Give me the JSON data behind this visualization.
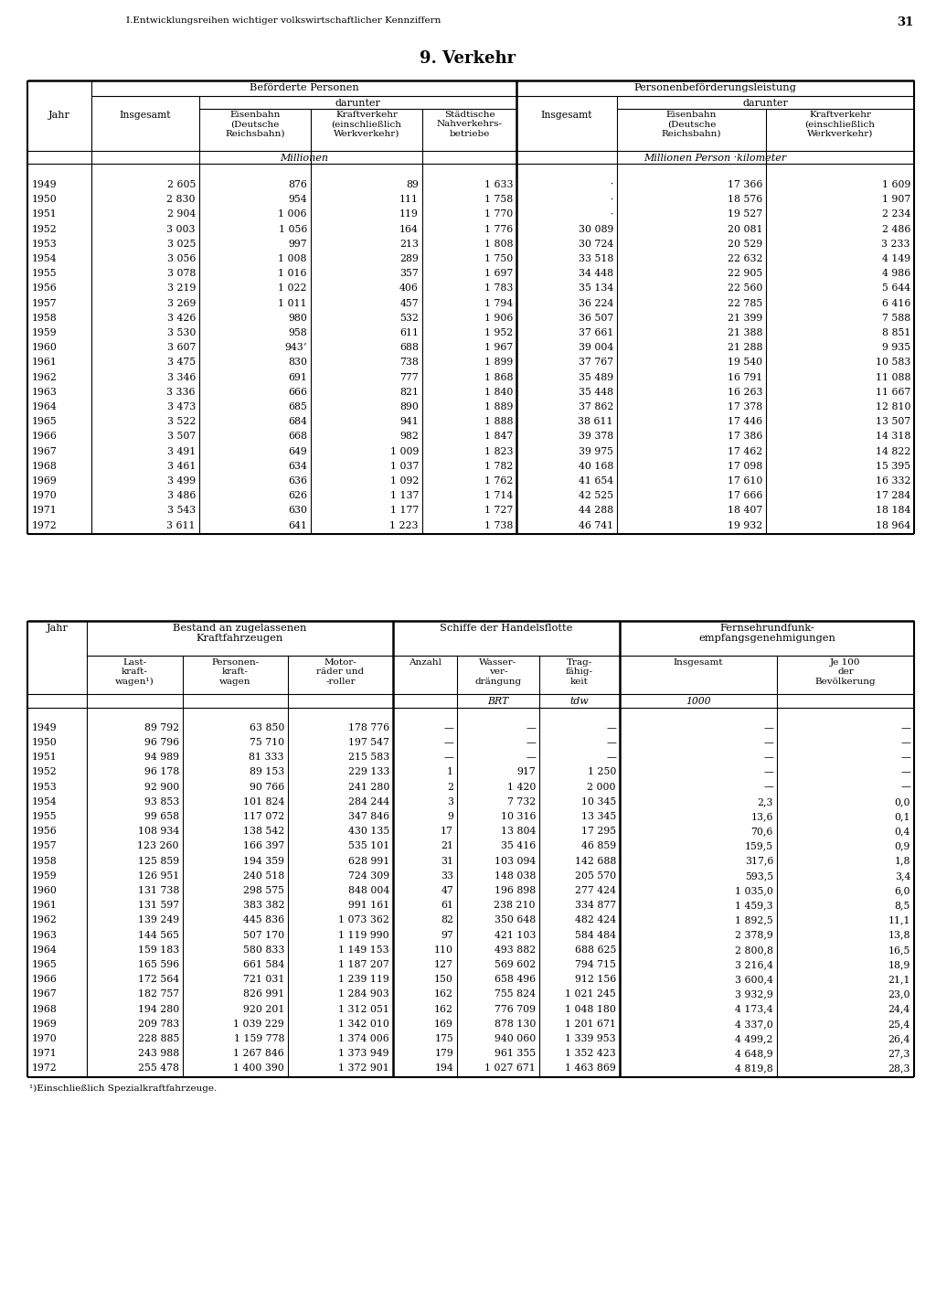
{
  "page_header": "I.Entwicklungsreihen wichtiger volkswirtschaftlicher Kennziffern",
  "page_number": "31",
  "section_title": "9. Verkehr",
  "table1": {
    "header1_left": "Beförderte Personen",
    "header1_right": "Personenbeförderungsleistung",
    "darunter1": "darunter",
    "darunter2": "darunter",
    "col_jahr": "Jahr",
    "col_ins1": "Insgesamt",
    "col_eisenbahn1": "Eisenbahn\n(Deutsche\nReichsbahn)",
    "col_kraft1": "Kraftverkehr\n(einschließlich\nWerkverkehr)",
    "col_stad": "Städtische\nNahverkehrs-\nbetriebe",
    "col_ins2": "Insgesamt",
    "col_eisenbahn2": "Eisenbahn\n(Deutsche\nReichsbahn)",
    "col_kraft2": "Kraftverkehr\n(einschließlich\nWerkverkehr)",
    "unit1": "Millionen",
    "unit2": "Millionen Person ·kilometer",
    "rows": [
      [
        "1949",
        "2 605",
        "876",
        "89",
        "1 633",
        "·",
        "17 366",
        "1 609"
      ],
      [
        "1950",
        "2 830",
        "954",
        "111",
        "1 758",
        "·",
        "18 576",
        "1 907"
      ],
      [
        "1951",
        "2 904",
        "1 006",
        "119",
        "1 770",
        "·",
        "19 527",
        "2 234"
      ],
      [
        "1952",
        "3 003",
        "1 056",
        "164",
        "1 776",
        "30 089",
        "20 081",
        "2 486"
      ],
      [
        "1953",
        "3 025",
        "997",
        "213",
        "1 808",
        "30 724",
        "20 529",
        "3 233"
      ],
      [
        "1954",
        "3 056",
        "1 008",
        "289",
        "1 750",
        "33 518",
        "22 632",
        "4 149"
      ],
      [
        "1955",
        "3 078",
        "1 016",
        "357",
        "1 697",
        "34 448",
        "22 905",
        "4 986"
      ],
      [
        "1956",
        "3 219",
        "1 022",
        "406",
        "1 783",
        "35 134",
        "22 560",
        "5 644"
      ],
      [
        "1957",
        "3 269",
        "1 011",
        "457",
        "1 794",
        "36 224",
        "22 785",
        "6 416"
      ],
      [
        "1958",
        "3 426",
        "980",
        "532",
        "1 906",
        "36 507",
        "21 399",
        "7 588"
      ],
      [
        "1959",
        "3 530",
        "958",
        "611",
        "1 952",
        "37 661",
        "21 388",
        "8 851"
      ],
      [
        "1960",
        "3 607",
        "943ʼ",
        "688",
        "1 967",
        "39 004",
        "21 288",
        "9 935"
      ],
      [
        "1961",
        "3 475",
        "830",
        "738",
        "1 899",
        "37 767",
        "19 540",
        "10 583"
      ],
      [
        "1962",
        "3 346",
        "691",
        "777",
        "1 868",
        "35 489",
        "16 791",
        "11 088"
      ],
      [
        "1963",
        "3 336",
        "666",
        "821",
        "1 840",
        "35 448",
        "16 263",
        "11 667"
      ],
      [
        "1964",
        "3 473",
        "685",
        "890",
        "1 889",
        "37 862",
        "17 378",
        "12 810"
      ],
      [
        "1965",
        "3 522",
        "684",
        "941",
        "1 888",
        "38 611",
        "17 446",
        "13 507"
      ],
      [
        "1966",
        "3 507",
        "668",
        "982",
        "1 847",
        "39 378",
        "17 386",
        "14 318"
      ],
      [
        "1967",
        "3 491",
        "649",
        "1 009",
        "1 823",
        "39 975",
        "17 462",
        "14 822"
      ],
      [
        "1968",
        "3 461",
        "634",
        "1 037",
        "1 782",
        "40 168",
        "17 098",
        "15 395"
      ],
      [
        "1969",
        "3 499",
        "636",
        "1 092",
        "1 762",
        "41 654",
        "17 610",
        "16 332"
      ],
      [
        "1970",
        "3 486",
        "626",
        "1 137",
        "1 714",
        "42 525",
        "17 666",
        "17 284"
      ],
      [
        "1971",
        "3 543",
        "630",
        "1 177",
        "1 727",
        "44 288",
        "18 407",
        "18 184"
      ],
      [
        "1972",
        "3 611",
        "641",
        "1 223",
        "1 738",
        "46 741",
        "19 932",
        "18 964"
      ]
    ]
  },
  "table2": {
    "header1_left": "Bestand an zugelassenen\nKraftfahrzeugen",
    "header1_mid": "Schiffe der Handelsflotte",
    "header1_right": "Fernsehrundfunk-\nempfangsgenehmigungen",
    "col_jahr": "Jahr",
    "col_lkw": "Last-\nkraft-\nwagen¹)",
    "col_pkw": "Personen-\nkraft-\nwagen",
    "col_moto": "Motor-\nräder und\n-roller",
    "col_anz": "Anzahl",
    "col_wasser": "Wasser-\nver-\ndrängung",
    "col_trag": "Trag-\nfähig-\nkeit",
    "col_ins": "Insgesamt",
    "col_je100": "Je 100\nder\nBevölkerung",
    "unit_wasser": "BRT",
    "unit_trag": "tdw",
    "unit_ins": "1000",
    "rows": [
      [
        "1949",
        "89 792",
        "63 850",
        "178 776",
        "—",
        "—",
        "—",
        "—",
        "—"
      ],
      [
        "1950",
        "96 796",
        "75 710",
        "197 547",
        "—",
        "—",
        "—",
        "—",
        "—"
      ],
      [
        "1951",
        "94 989",
        "81 333",
        "215 583",
        "—",
        "—",
        "—",
        "—",
        "—"
      ],
      [
        "1952",
        "96 178",
        "89 153",
        "229 133",
        "1",
        "917",
        "1 250",
        "—",
        "—"
      ],
      [
        "1953",
        "92 900",
        "90 766",
        "241 280",
        "2",
        "1 420",
        "2 000",
        "—",
        "—"
      ],
      [
        "1954",
        "93 853",
        "101 824",
        "284 244",
        "3",
        "7 732",
        "10 345",
        "2,3",
        "0,0"
      ],
      [
        "1955",
        "99 658",
        "117 072",
        "347 846",
        "9",
        "10 316",
        "13 345",
        "13,6",
        "0,1"
      ],
      [
        "1956",
        "108 934",
        "138 542",
        "430 135",
        "17",
        "13 804",
        "17 295",
        "70,6",
        "0,4"
      ],
      [
        "1957",
        "123 260",
        "166 397",
        "535 101",
        "21",
        "35 416",
        "46 859",
        "159,5",
        "0,9"
      ],
      [
        "1958",
        "125 859",
        "194 359",
        "628 991",
        "31",
        "103 094",
        "142 688",
        "317,6",
        "1,8"
      ],
      [
        "1959",
        "126 951",
        "240 518",
        "724 309",
        "33",
        "148 038",
        "205 570",
        "593,5",
        "3,4"
      ],
      [
        "1960",
        "131 738",
        "298 575",
        "848 004",
        "47",
        "196 898",
        "277 424",
        "1 035,0",
        "6,0"
      ],
      [
        "1961",
        "131 597",
        "383 382",
        "991 161",
        "61",
        "238 210",
        "334 877",
        "1 459,3",
        "8,5"
      ],
      [
        "1962",
        "139 249",
        "445 836",
        "1 073 362",
        "82",
        "350 648",
        "482 424",
        "1 892,5",
        "11,1"
      ],
      [
        "1963",
        "144 565",
        "507 170",
        "1 119 990",
        "97",
        "421 103",
        "584 484",
        "2 378,9",
        "13,8"
      ],
      [
        "1964",
        "159 183",
        "580 833",
        "1 149 153",
        "110",
        "493 882",
        "688 625",
        "2 800,8",
        "16,5"
      ],
      [
        "1965",
        "165 596",
        "661 584",
        "1 187 207",
        "127",
        "569 602",
        "794 715",
        "3 216,4",
        "18,9"
      ],
      [
        "1966",
        "172 564",
        "721 031",
        "1 239 119",
        "150",
        "658 496",
        "912 156",
        "3 600,4",
        "21,1"
      ],
      [
        "1967",
        "182 757",
        "826 991",
        "1 284 903",
        "162",
        "755 824",
        "1 021 245",
        "3 932,9",
        "23,0"
      ],
      [
        "1968",
        "194 280",
        "920 201",
        "1 312 051",
        "162",
        "776 709",
        "1 048 180",
        "4 173,4",
        "24,4"
      ],
      [
        "1969",
        "209 783",
        "1 039 229",
        "1 342 010",
        "169",
        "878 130",
        "1 201 671",
        "4 337,0",
        "25,4"
      ],
      [
        "1970",
        "228 885",
        "1 159 778",
        "1 374 006",
        "175",
        "940 060",
        "1 339 953",
        "4 499,2",
        "26,4"
      ],
      [
        "1971",
        "243 988",
        "1 267 846",
        "1 373 949",
        "179",
        "961 355",
        "1 352 423",
        "4 648,9",
        "27,3"
      ],
      [
        "1972",
        "255 478",
        "1 400 390",
        "1 372 901",
        "194",
        "1 027 671",
        "1 463 869",
        "4 819,8",
        "28,3"
      ]
    ],
    "footnote": "¹)Einschließlich Spezialkraftfahrzeuge."
  }
}
